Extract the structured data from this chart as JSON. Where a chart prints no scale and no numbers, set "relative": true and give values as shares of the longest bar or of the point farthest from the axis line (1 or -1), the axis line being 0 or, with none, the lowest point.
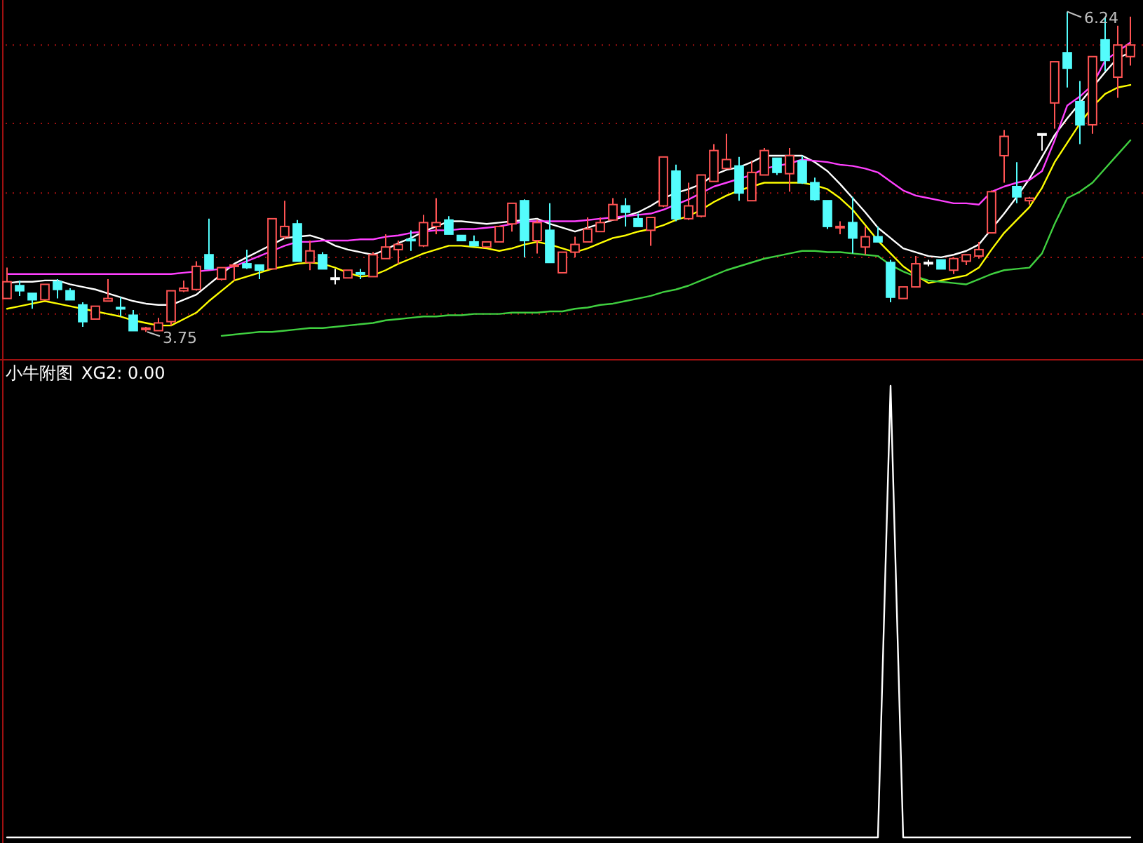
{
  "chart_data": [
    {
      "type": "candlestick",
      "categories": [
        null,
        null,
        null,
        null,
        null,
        null,
        null,
        null,
        null,
        null,
        null,
        null,
        null,
        null,
        null,
        null,
        null,
        null,
        null,
        null,
        null,
        null,
        null,
        null,
        null,
        null,
        null,
        null,
        null,
        null,
        null,
        null,
        null,
        null,
        null,
        null,
        null,
        null,
        null,
        null,
        null,
        null,
        null,
        null,
        null,
        null,
        null,
        null,
        null,
        null,
        null,
        null,
        null,
        null,
        null,
        null,
        null,
        null,
        null,
        null,
        null,
        null,
        null,
        null,
        null,
        null,
        null,
        null,
        null,
        null,
        null,
        null,
        null,
        null,
        null,
        null,
        null,
        null,
        null,
        null,
        null,
        null,
        null,
        null,
        null,
        null,
        null,
        null,
        null,
        null
      ],
      "ohlc": [
        [
          4.01,
          4.25,
          4.01,
          4.14
        ],
        [
          4.11,
          4.15,
          4.03,
          4.07
        ],
        [
          4.05,
          4.05,
          3.93,
          4.0
        ],
        [
          4.0,
          4.12,
          4.0,
          4.12
        ],
        [
          4.14,
          4.16,
          4.01,
          4.08
        ],
        [
          4.07,
          4.09,
          4.0,
          4.0
        ],
        [
          3.96,
          3.98,
          3.79,
          3.83
        ],
        [
          3.85,
          3.95,
          3.85,
          3.95
        ],
        [
          3.99,
          4.16,
          3.99,
          4.01
        ],
        [
          3.94,
          4.02,
          3.87,
          3.93
        ],
        [
          3.88,
          3.92,
          3.76,
          3.76
        ],
        [
          3.77,
          3.79,
          3.75,
          3.78
        ],
        [
          3.76,
          3.86,
          3.76,
          3.82
        ],
        [
          3.83,
          4.07,
          3.8,
          4.07
        ],
        [
          4.07,
          4.15,
          4.06,
          4.09
        ],
        [
          4.08,
          4.3,
          4.07,
          4.26
        ],
        [
          4.35,
          4.63,
          4.24,
          4.24
        ],
        [
          4.16,
          4.25,
          4.15,
          4.25
        ],
        [
          4.26,
          4.27,
          4.15,
          4.27
        ],
        [
          4.28,
          4.39,
          4.24,
          4.25
        ],
        [
          4.27,
          4.27,
          4.16,
          4.23
        ],
        [
          4.24,
          4.63,
          4.24,
          4.63
        ],
        [
          4.49,
          4.77,
          4.47,
          4.57
        ],
        [
          4.59,
          4.62,
          4.3,
          4.3
        ],
        [
          4.29,
          4.46,
          4.23,
          4.38
        ],
        [
          4.35,
          4.37,
          4.24,
          4.24
        ],
        [
          4.17,
          4.24,
          4.12,
          4.17
        ],
        [
          4.17,
          4.23,
          4.17,
          4.23
        ],
        [
          4.21,
          4.24,
          4.16,
          4.2
        ],
        [
          4.18,
          4.37,
          4.18,
          4.35
        ],
        [
          4.32,
          4.51,
          4.32,
          4.41
        ],
        [
          4.39,
          4.46,
          4.28,
          4.43
        ],
        [
          4.47,
          4.54,
          4.38,
          4.46
        ],
        [
          4.42,
          4.66,
          4.41,
          4.6
        ],
        [
          4.57,
          4.79,
          4.51,
          4.6
        ],
        [
          4.62,
          4.65,
          4.51,
          4.51
        ],
        [
          4.5,
          4.5,
          4.46,
          4.46
        ],
        [
          4.45,
          4.5,
          4.42,
          4.42
        ],
        [
          4.41,
          4.45,
          4.41,
          4.45
        ],
        [
          4.45,
          4.57,
          4.45,
          4.57
        ],
        [
          4.59,
          4.75,
          4.53,
          4.75
        ],
        [
          4.77,
          4.78,
          4.33,
          4.46
        ],
        [
          4.46,
          4.62,
          4.36,
          4.6
        ],
        [
          4.54,
          4.75,
          4.29,
          4.29
        ],
        [
          4.21,
          4.37,
          4.21,
          4.37
        ],
        [
          4.37,
          4.49,
          4.33,
          4.43
        ],
        [
          4.45,
          4.64,
          4.45,
          4.55
        ],
        [
          4.53,
          4.64,
          4.53,
          4.6
        ],
        [
          4.62,
          4.79,
          4.62,
          4.74
        ],
        [
          4.73,
          4.79,
          4.57,
          4.68
        ],
        [
          4.63,
          4.67,
          4.57,
          4.57
        ],
        [
          4.54,
          4.64,
          4.42,
          4.64
        ],
        [
          4.73,
          5.11,
          4.72,
          5.11
        ],
        [
          5.0,
          5.05,
          4.61,
          4.63
        ],
        [
          4.63,
          4.91,
          4.62,
          4.73
        ],
        [
          4.65,
          4.97,
          4.64,
          4.97
        ],
        [
          4.92,
          5.21,
          4.92,
          5.16
        ],
        [
          5.02,
          5.29,
          5.02,
          5.09
        ],
        [
          5.04,
          5.11,
          4.77,
          4.83
        ],
        [
          4.77,
          5.08,
          4.77,
          4.99
        ],
        [
          4.97,
          5.18,
          4.97,
          5.16
        ],
        [
          5.1,
          5.1,
          4.97,
          4.99
        ],
        [
          4.98,
          5.18,
          4.84,
          5.12
        ],
        [
          5.08,
          5.12,
          4.9,
          4.91
        ],
        [
          4.91,
          4.95,
          4.77,
          4.78
        ],
        [
          4.77,
          4.77,
          4.55,
          4.57
        ],
        [
          4.56,
          4.61,
          4.51,
          4.57
        ],
        [
          4.6,
          4.8,
          4.36,
          4.48
        ],
        [
          4.41,
          4.57,
          4.35,
          4.49
        ],
        [
          4.49,
          4.57,
          4.45,
          4.45
        ],
        [
          4.29,
          4.31,
          3.98,
          4.02
        ],
        [
          4.01,
          4.1,
          4.01,
          4.1
        ],
        [
          4.1,
          4.34,
          4.1,
          4.28
        ],
        [
          4.29,
          4.31,
          4.26,
          4.29
        ],
        [
          4.31,
          4.31,
          4.24,
          4.24
        ],
        [
          4.23,
          4.33,
          4.2,
          4.32
        ],
        [
          4.3,
          4.35,
          4.27,
          4.35
        ],
        [
          4.34,
          4.45,
          4.32,
          4.39
        ],
        [
          4.52,
          4.85,
          4.52,
          4.84
        ],
        [
          5.12,
          5.32,
          4.91,
          5.27
        ],
        [
          4.88,
          5.07,
          4.75,
          4.8
        ],
        [
          4.77,
          4.8,
          4.74,
          4.79
        ],
        [
          5.29,
          5.29,
          5.16,
          5.29
        ],
        [
          5.53,
          5.85,
          5.33,
          5.85
        ],
        [
          5.92,
          6.24,
          5.65,
          5.8
        ],
        [
          5.54,
          5.7,
          5.21,
          5.36
        ],
        [
          5.36,
          5.89,
          5.29,
          5.89
        ],
        [
          6.02,
          6.2,
          5.78,
          5.86
        ],
        [
          5.73,
          6.13,
          5.57,
          5.98
        ],
        [
          5.89,
          6.2,
          5.82,
          5.98
        ]
      ],
      "colors": [
        "#ff5454",
        "#54fcfc",
        "#54fcfc",
        "#ff5454",
        "#54fcfc",
        "#54fcfc",
        "#54fcfc",
        "#ff5454",
        "#ff5454",
        "#54fcfc",
        "#54fcfc",
        "#ff5454",
        "#ff5454",
        "#ff5454",
        "#ff5454",
        "#ff5454",
        "#54fcfc",
        "#ff5454",
        "#ff5454",
        "#54fcfc",
        "#54fcfc",
        "#ff5454",
        "#ff5454",
        "#54fcfc",
        "#ff5454",
        "#54fcfc",
        "#ffffff",
        "#ff5454",
        "#54fcfc",
        "#ff5454",
        "#ff5454",
        "#ff5454",
        "#54fcfc",
        "#ff5454",
        "#ff5454",
        "#54fcfc",
        "#54fcfc",
        "#54fcfc",
        "#ff5454",
        "#ff5454",
        "#ff5454",
        "#54fcfc",
        "#ff5454",
        "#54fcfc",
        "#ff5454",
        "#ff5454",
        "#ff5454",
        "#ff5454",
        "#ff5454",
        "#54fcfc",
        "#54fcfc",
        "#ff5454",
        "#ff5454",
        "#54fcfc",
        "#ff5454",
        "#ff5454",
        "#ff5454",
        "#ff5454",
        "#54fcfc",
        "#ff5454",
        "#ff5454",
        "#54fcfc",
        "#ff5454",
        "#54fcfc",
        "#54fcfc",
        "#54fcfc",
        "#ff5454",
        "#54fcfc",
        "#ff5454",
        "#54fcfc",
        "#54fcfc",
        "#ff5454",
        "#ff5454",
        "#ffffff",
        "#54fcfc",
        "#ff5454",
        "#ff5454",
        "#ff5454",
        "#ff5454",
        "#ff5454",
        "#54fcfc",
        "#ff5454",
        "#ffffff",
        "#ff5454",
        "#54fcfc",
        "#54fcfc",
        "#ff5454",
        "#54fcfc",
        "#ff5454",
        "#ff5454"
      ],
      "series": [
        {
          "type": "line",
          "color": "#ffffff",
          "values": [
            4.13,
            4.14,
            4.14,
            4.15,
            4.15,
            4.12,
            4.1,
            4.08,
            4.05,
            4.02,
            3.99,
            3.97,
            3.96,
            3.96,
            4.0,
            4.04,
            4.12,
            4.2,
            4.28,
            4.33,
            4.38,
            4.43,
            4.48,
            4.49,
            4.5,
            4.47,
            4.42,
            4.39,
            4.37,
            4.35,
            4.39,
            4.44,
            4.48,
            4.53,
            4.57,
            4.61,
            4.61,
            4.6,
            4.59,
            4.6,
            4.61,
            4.62,
            4.63,
            4.59,
            4.56,
            4.53,
            4.56,
            4.59,
            4.62,
            4.65,
            4.68,
            4.73,
            4.79,
            4.83,
            4.86,
            4.9,
            4.97,
            5.01,
            5.03,
            5.07,
            5.12,
            5.12,
            5.12,
            5.12,
            5.07,
            5.0,
            4.9,
            4.79,
            4.68,
            4.56,
            4.48,
            4.4,
            4.37,
            4.34,
            4.33,
            4.35,
            4.38,
            4.43,
            4.55,
            4.67,
            4.8,
            4.94,
            5.11,
            5.28,
            5.41,
            5.53,
            5.65,
            5.77,
            5.88,
            5.92
          ]
        },
        {
          "type": "line",
          "color": "#ffff00",
          "values": [
            3.93,
            3.95,
            3.97,
            3.99,
            3.97,
            3.95,
            3.93,
            3.91,
            3.89,
            3.87,
            3.84,
            3.82,
            3.8,
            3.8,
            3.85,
            3.9,
            3.99,
            4.07,
            4.15,
            4.18,
            4.21,
            4.24,
            4.26,
            4.28,
            4.29,
            4.28,
            4.25,
            4.21,
            4.18,
            4.19,
            4.23,
            4.28,
            4.32,
            4.36,
            4.39,
            4.42,
            4.42,
            4.41,
            4.4,
            4.38,
            4.4,
            4.43,
            4.45,
            4.43,
            4.4,
            4.37,
            4.4,
            4.44,
            4.48,
            4.5,
            4.53,
            4.55,
            4.58,
            4.62,
            4.65,
            4.7,
            4.76,
            4.81,
            4.85,
            4.88,
            4.91,
            4.91,
            4.91,
            4.91,
            4.89,
            4.86,
            4.79,
            4.7,
            4.58,
            4.46,
            4.36,
            4.26,
            4.19,
            4.13,
            4.15,
            4.17,
            4.19,
            4.25,
            4.39,
            4.52,
            4.62,
            4.72,
            4.87,
            5.07,
            5.22,
            5.37,
            5.5,
            5.6,
            5.65,
            5.67
          ]
        },
        {
          "type": "line",
          "color": "#ff40ff",
          "values": [
            4.2,
            4.2,
            4.2,
            4.2,
            4.2,
            4.2,
            4.2,
            4.2,
            4.2,
            4.2,
            4.2,
            4.2,
            4.2,
            4.2,
            4.21,
            4.22,
            4.23,
            4.24,
            4.26,
            4.3,
            4.34,
            4.38,
            4.42,
            4.45,
            4.45,
            4.46,
            4.46,
            4.46,
            4.47,
            4.47,
            4.49,
            4.5,
            4.52,
            4.53,
            4.54,
            4.54,
            4.55,
            4.55,
            4.56,
            4.57,
            4.59,
            4.61,
            4.61,
            4.61,
            4.61,
            4.61,
            4.62,
            4.63,
            4.64,
            4.65,
            4.66,
            4.67,
            4.7,
            4.74,
            4.78,
            4.83,
            4.88,
            4.91,
            4.94,
            4.97,
            5.02,
            5.04,
            5.06,
            5.09,
            5.08,
            5.07,
            5.05,
            5.04,
            5.02,
            4.99,
            4.92,
            4.85,
            4.81,
            4.79,
            4.77,
            4.75,
            4.75,
            4.74,
            4.84,
            4.88,
            4.91,
            4.93,
            5.0,
            5.24,
            5.51,
            5.58,
            5.67,
            5.86,
            5.93,
            6.0
          ]
        },
        {
          "type": "line",
          "color": "#40d040",
          "values": [
            null,
            null,
            null,
            null,
            null,
            null,
            null,
            null,
            null,
            null,
            null,
            null,
            null,
            null,
            null,
            null,
            null,
            3.72,
            3.73,
            3.74,
            3.75,
            3.75,
            3.76,
            3.77,
            3.78,
            3.78,
            3.79,
            3.8,
            3.81,
            3.82,
            3.84,
            3.85,
            3.86,
            3.87,
            3.87,
            3.88,
            3.88,
            3.89,
            3.89,
            3.89,
            3.9,
            3.9,
            3.9,
            3.91,
            3.91,
            3.93,
            3.94,
            3.96,
            3.97,
            3.99,
            4.01,
            4.03,
            4.06,
            4.08,
            4.11,
            4.15,
            4.19,
            4.23,
            4.26,
            4.29,
            4.32,
            4.34,
            4.36,
            4.38,
            4.38,
            4.37,
            4.37,
            4.36,
            4.35,
            4.34,
            4.27,
            4.22,
            4.18,
            4.15,
            4.14,
            4.13,
            4.12,
            4.16,
            4.2,
            4.23,
            4.24,
            4.25,
            4.36,
            4.59,
            4.79,
            4.84,
            4.91,
            5.02,
            5.13,
            5.24
          ]
        }
      ],
      "ylim": [
        3.55,
        6.33
      ],
      "yticks": [
        {
          "value": 3.89,
          "label": null
        },
        {
          "value": 4.33,
          "label": null
        },
        {
          "value": 4.83,
          "label": null
        },
        {
          "value": 5.37,
          "label": null
        },
        {
          "value": 5.98,
          "label": null
        }
      ],
      "grid": "y",
      "annotations": [
        {
          "text": "6.24",
          "y": 6.24
        },
        "3.75"
      ]
    },
    {
      "type": "line",
      "title": "小牛附图",
      "annotations": [
        "XG2: 0.00"
      ],
      "relative": true,
      "categories": [
        null,
        null,
        null,
        null,
        null,
        null,
        null,
        null,
        null,
        null,
        null,
        null,
        null,
        null,
        null,
        null,
        null,
        null,
        null,
        null,
        null,
        null,
        null,
        null,
        null,
        null,
        null,
        null,
        null,
        null,
        null,
        null,
        null,
        null,
        null,
        null,
        null,
        null,
        null,
        null,
        null,
        null,
        null,
        null,
        null,
        null,
        null,
        null,
        null,
        null,
        null,
        null,
        null,
        null,
        null,
        null,
        null,
        null,
        null,
        null,
        null,
        null,
        null,
        null,
        null,
        null,
        null,
        null,
        null,
        null,
        null,
        null,
        null,
        null,
        null,
        null,
        null,
        null,
        null,
        null,
        null,
        null,
        null,
        null,
        null,
        null,
        null,
        null,
        null,
        null
      ],
      "series": [
        {
          "color": "#ffffff",
          "values": [
            0,
            0,
            0,
            0,
            0,
            0,
            0,
            0,
            0,
            0,
            0,
            0,
            0,
            0,
            0,
            0,
            0,
            0,
            0,
            0,
            0,
            0,
            0,
            0,
            0,
            0,
            0,
            0,
            0,
            0,
            0,
            0,
            0,
            0,
            0,
            0,
            0,
            0,
            0,
            0,
            0,
            0,
            0,
            0,
            0,
            0,
            0,
            0,
            0,
            0,
            0,
            0,
            0,
            0,
            0,
            0,
            0,
            0,
            0,
            0,
            0,
            0,
            0,
            0,
            0,
            0,
            0,
            0,
            0,
            0,
            1,
            0,
            0,
            0,
            0,
            0,
            0,
            0,
            0,
            0,
            0,
            0,
            0,
            0,
            0,
            0,
            0,
            0,
            0,
            0
          ]
        }
      ]
    }
  ]
}
